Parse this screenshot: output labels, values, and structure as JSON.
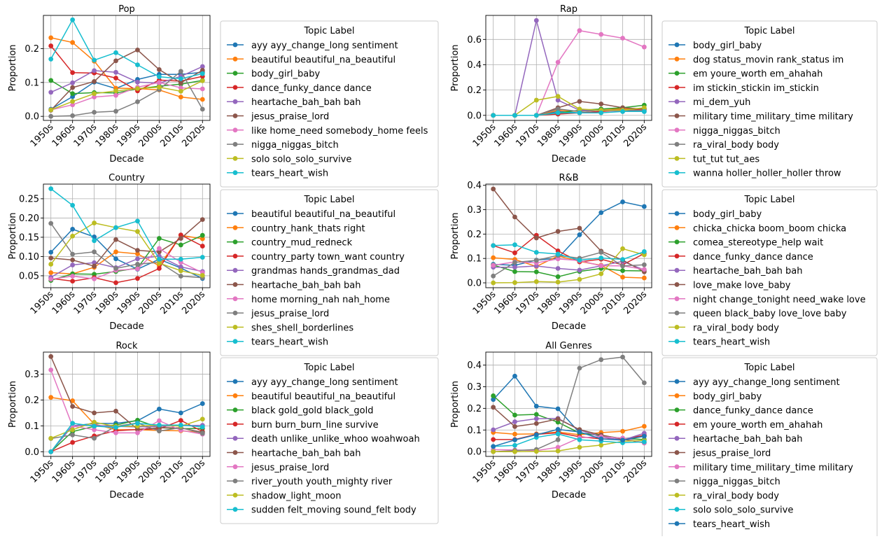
{
  "palette": [
    "#1f77b4",
    "#ff7f0e",
    "#2ca02c",
    "#d62728",
    "#9467bd",
    "#8c564b",
    "#e377c2",
    "#7f7f7f",
    "#bcbd22",
    "#17becf",
    "#1f77b4"
  ],
  "chart_data": [
    {
      "type": "line",
      "title": "Pop",
      "xlabel": "Decade",
      "ylabel": "Proportion",
      "legend_title": "Topic Label",
      "categories": [
        "1950s",
        "1960s",
        "1970s",
        "1980s",
        "1990s",
        "2000s",
        "2010s",
        "2020s"
      ],
      "ylim": [
        -0.012,
        0.298
      ],
      "yticks": [
        0.0,
        0.1,
        0.2
      ],
      "ytick_labels": [
        "0.0",
        "0.1",
        "0.2"
      ],
      "grid": true,
      "series": [
        {
          "name": "ayy ayy_change_long sentiment",
          "values": [
            0.021,
            0.058,
            0.101,
            0.082,
            0.109,
            0.124,
            0.124,
            0.13
          ]
        },
        {
          "name": "beautiful beautiful_na_beautiful",
          "values": [
            0.232,
            0.218,
            0.163,
            0.083,
            0.082,
            0.078,
            0.057,
            0.05
          ]
        },
        {
          "name": "body_girl_baby",
          "values": [
            0.106,
            0.067,
            0.07,
            0.069,
            0.081,
            0.089,
            0.095,
            0.106
          ]
        },
        {
          "name": "dance_funky_dance dance",
          "values": [
            0.208,
            0.129,
            0.128,
            0.113,
            0.075,
            0.107,
            0.104,
            0.118
          ]
        },
        {
          "name": "heartache_bah_bah bah",
          "values": [
            0.071,
            0.099,
            0.135,
            0.13,
            0.101,
            0.098,
            0.118,
            0.147
          ]
        },
        {
          "name": "jesus_praise_lord",
          "values": [
            0.018,
            0.085,
            0.103,
            0.164,
            0.196,
            0.138,
            0.099,
            0.136
          ]
        },
        {
          "name": "like home_need somebody_home feels",
          "values": [
            0.019,
            0.034,
            0.057,
            0.062,
            0.086,
            0.1,
            0.084,
            0.081
          ]
        },
        {
          "name": "nigga_niggas_bitch",
          "values": [
            0.0,
            0.002,
            0.012,
            0.015,
            0.043,
            0.079,
            0.133,
            0.021
          ]
        },
        {
          "name": "solo solo_solo_survive",
          "values": [
            0.019,
            0.044,
            0.067,
            0.075,
            0.082,
            0.086,
            0.074,
            0.105
          ]
        },
        {
          "name": "tears_heart_wish",
          "values": [
            0.169,
            0.285,
            0.166,
            0.188,
            0.152,
            0.117,
            0.111,
            0.126
          ]
        }
      ]
    },
    {
      "type": "line",
      "title": "Rap",
      "xlabel": "Decade",
      "ylabel": "Proportion",
      "legend_title": "Topic Label",
      "categories": [
        "1950s",
        "1960s",
        "1970s",
        "1980s",
        "1990s",
        "2000s",
        "2010s",
        "2020s"
      ],
      "ylim": [
        -0.04,
        0.79
      ],
      "yticks": [
        0.0,
        0.2,
        0.4,
        0.6
      ],
      "ytick_labels": [
        "0.0",
        "0.2",
        "0.4",
        "0.6"
      ],
      "grid": true,
      "series": [
        {
          "name": "body_girl_baby",
          "values": [
            0.0,
            0.0,
            0.0,
            0.03,
            0.02,
            0.03,
            0.05,
            0.03
          ]
        },
        {
          "name": "dog status_movin rank_status im",
          "values": [
            0.0,
            0.0,
            0.0,
            0.04,
            0.03,
            0.05,
            0.05,
            0.05
          ]
        },
        {
          "name": "em youre_worth em_ahahah",
          "values": [
            0.0,
            0.0,
            0.0,
            0.02,
            0.04,
            0.05,
            0.06,
            0.08
          ]
        },
        {
          "name": "im stickin_stickin im_stickin",
          "values": [
            0.0,
            0.0,
            0.0,
            0.01,
            0.02,
            0.03,
            0.04,
            0.05
          ]
        },
        {
          "name": "mi_dem_yuh",
          "values": [
            0.0,
            0.0,
            0.75,
            0.12,
            0.04,
            0.04,
            0.03,
            0.04
          ]
        },
        {
          "name": "military time_military_time military",
          "values": [
            0.0,
            0.0,
            0.0,
            0.06,
            0.11,
            0.09,
            0.06,
            0.05
          ]
        },
        {
          "name": "nigga_niggas_bitch",
          "values": [
            0.0,
            0.0,
            0.0,
            0.42,
            0.67,
            0.64,
            0.61,
            0.54
          ]
        },
        {
          "name": "ra_viral_body body",
          "values": [
            0.0,
            0.0,
            0.0,
            0.05,
            0.03,
            0.04,
            0.04,
            0.04
          ]
        },
        {
          "name": "tut_tut tut_aes",
          "values": [
            0.0,
            0.0,
            0.12,
            0.15,
            0.05,
            0.04,
            0.04,
            0.06
          ]
        },
        {
          "name": "wanna holler_holler_holler throw",
          "values": [
            0.0,
            0.0,
            0.0,
            0.02,
            0.02,
            0.02,
            0.03,
            0.03
          ]
        }
      ]
    },
    {
      "type": "line",
      "title": "Country",
      "xlabel": "Decade",
      "ylabel": "Proportion",
      "legend_title": "Topic Label",
      "categories": [
        "1950s",
        "1960s",
        "1970s",
        "1980s",
        "1990s",
        "2000s",
        "2010s",
        "2020s"
      ],
      "ylim": [
        0.019,
        0.288
      ],
      "yticks": [
        0.05,
        0.1,
        0.15,
        0.2,
        0.25
      ],
      "ytick_labels": [
        "0.05",
        "0.10",
        "0.15",
        "0.20",
        "0.25"
      ],
      "grid": true,
      "series": [
        {
          "name": "beautiful beautiful_na_beautiful",
          "values": [
            0.111,
            0.171,
            0.151,
            0.094,
            0.067,
            0.093,
            0.07,
            0.043
          ]
        },
        {
          "name": "country_hank_thats right",
          "values": [
            0.058,
            0.055,
            0.072,
            0.112,
            0.107,
            0.076,
            0.155,
            0.146
          ]
        },
        {
          "name": "country_mud_redneck",
          "values": [
            0.038,
            0.055,
            0.054,
            0.061,
            0.07,
            0.147,
            0.13,
            0.155
          ]
        },
        {
          "name": "country_party town_want country",
          "values": [
            0.043,
            0.036,
            0.045,
            0.032,
            0.043,
            0.069,
            0.156,
            0.127
          ]
        },
        {
          "name": "grandmas hands_grandmas_dad",
          "values": [
            0.046,
            0.078,
            0.084,
            0.071,
            0.094,
            0.101,
            0.073,
            0.061
          ]
        },
        {
          "name": "heartache_bah_bah bah",
          "values": [
            0.096,
            0.091,
            0.075,
            0.144,
            0.116,
            0.112,
            0.147,
            0.196
          ]
        },
        {
          "name": "home morning_nah nah_home",
          "values": [
            0.041,
            0.049,
            0.042,
            0.064,
            0.068,
            0.121,
            0.085,
            0.058
          ]
        },
        {
          "name": "jesus_praise_lord",
          "values": [
            0.186,
            0.106,
            0.112,
            0.069,
            0.08,
            0.085,
            0.049,
            0.045
          ]
        },
        {
          "name": "shes_shell_borderlines",
          "values": [
            0.08,
            0.153,
            0.187,
            0.175,
            0.165,
            0.083,
            0.063,
            0.051
          ]
        },
        {
          "name": "tears_heart_wish",
          "values": [
            0.276,
            0.233,
            0.141,
            0.175,
            0.192,
            0.093,
            0.093,
            0.098
          ]
        }
      ]
    },
    {
      "type": "line",
      "title": "R&B",
      "xlabel": "Decade",
      "ylabel": "Proportion",
      "legend_title": "Topic Label",
      "categories": [
        "1950s",
        "1960s",
        "1970s",
        "1980s",
        "1990s",
        "2000s",
        "2010s",
        "2020s"
      ],
      "ylim": [
        -0.02,
        0.405
      ],
      "yticks": [
        0.0,
        0.1,
        0.2,
        0.3,
        0.4
      ],
      "ytick_labels": [
        "0.0",
        "0.1",
        "0.2",
        "0.3",
        "0.4"
      ],
      "grid": true,
      "series": [
        {
          "name": "body_girl_baby",
          "values": [
            0.076,
            0.072,
            0.093,
            0.101,
            0.197,
            0.288,
            0.332,
            0.313
          ]
        },
        {
          "name": "chicka_chicka boom_boom chicka",
          "values": [
            0.103,
            0.096,
            0.067,
            0.11,
            0.088,
            0.072,
            0.023,
            0.02
          ]
        },
        {
          "name": "comea_stereotype_help wait",
          "values": [
            0.073,
            0.046,
            0.045,
            0.025,
            0.047,
            0.059,
            0.05,
            0.049
          ]
        },
        {
          "name": "dance_funky_dance dance",
          "values": [
            0.153,
            0.123,
            0.195,
            0.131,
            0.086,
            0.097,
            0.074,
            0.12
          ]
        },
        {
          "name": "heartache_bah_bah bah",
          "values": [
            0.064,
            0.064,
            0.069,
            0.059,
            0.052,
            0.07,
            0.088,
            0.053
          ]
        },
        {
          "name": "love_make love_baby",
          "values": [
            0.385,
            0.27,
            0.184,
            0.211,
            0.224,
            0.13,
            0.093,
            0.045
          ]
        },
        {
          "name": "night change_tonight need_wake love",
          "values": [
            0.072,
            0.086,
            0.082,
            0.098,
            0.091,
            0.07,
            0.07,
            0.055
          ]
        },
        {
          "name": "queen black_baby love_love baby",
          "values": [
            0.028,
            0.084,
            0.092,
            0.113,
            0.101,
            0.125,
            0.069,
            0.074
          ]
        },
        {
          "name": "ra_viral_body body",
          "values": [
            0.0,
            0.001,
            0.005,
            0.003,
            0.014,
            0.037,
            0.14,
            0.115
          ]
        },
        {
          "name": "tears_heart_wish",
          "values": [
            0.153,
            0.156,
            0.125,
            0.118,
            0.093,
            0.102,
            0.096,
            0.128
          ]
        }
      ]
    },
    {
      "type": "line",
      "title": "Rock",
      "xlabel": "Decade",
      "ylabel": "Proportion",
      "legend_title": "Topic Label",
      "categories": [
        "1950s",
        "1960s",
        "1970s",
        "1980s",
        "1990s",
        "2000s",
        "2010s",
        "2020s"
      ],
      "ylim": [
        -0.018,
        0.385
      ],
      "yticks": [
        0.0,
        0.1,
        0.2,
        0.3
      ],
      "ytick_labels": [
        "0.0",
        "0.1",
        "0.2",
        "0.3"
      ],
      "grid": true,
      "series": [
        {
          "name": "ayy ayy_change_long sentiment",
          "values": [
            0.0,
            0.1,
            0.109,
            0.11,
            0.12,
            0.165,
            0.15,
            0.186
          ]
        },
        {
          "name": "beautiful beautiful_na_beautiful",
          "values": [
            0.21,
            0.197,
            0.107,
            0.085,
            0.085,
            0.082,
            0.081,
            0.074
          ]
        },
        {
          "name": "black gold_gold black_gold",
          "values": [
            0.0,
            0.078,
            0.098,
            0.103,
            0.122,
            0.093,
            0.089,
            0.09
          ]
        },
        {
          "name": "burn burn_burn_line survive",
          "values": [
            0.0,
            0.036,
            0.061,
            0.081,
            0.086,
            0.088,
            0.121,
            0.078
          ]
        },
        {
          "name": "death unlike_unlike_whoo woahwoah",
          "values": [
            0.0,
            0.101,
            0.102,
            0.098,
            0.096,
            0.098,
            0.101,
            0.102
          ]
        },
        {
          "name": "heartache_bah_bah bah",
          "values": [
            0.368,
            0.175,
            0.15,
            0.157,
            0.087,
            0.093,
            0.092,
            0.075
          ]
        },
        {
          "name": "jesus_praise_lord",
          "values": [
            0.316,
            0.099,
            0.085,
            0.073,
            0.073,
            0.12,
            0.083,
            0.068
          ]
        },
        {
          "name": "river_youth youth_mighty river",
          "values": [
            0.051,
            0.065,
            0.052,
            0.098,
            0.111,
            0.08,
            0.093,
            0.071
          ]
        },
        {
          "name": "shadow_light_moon",
          "values": [
            0.052,
            0.085,
            0.114,
            0.098,
            0.099,
            0.103,
            0.099,
            0.126
          ]
        },
        {
          "name": "sudden felt_moving sound_felt body",
          "values": [
            0.0,
            0.11,
            0.099,
            0.094,
            0.11,
            0.103,
            0.103,
            0.096
          ]
        }
      ]
    },
    {
      "type": "line",
      "title": "All Genres",
      "xlabel": "Decade",
      "ylabel": "Proportion",
      "legend_title": "Topic Label",
      "categories": [
        "1950s",
        "1960s",
        "1970s",
        "1980s",
        "1990s",
        "2000s",
        "2010s",
        "2020s"
      ],
      "ylim": [
        -0.022,
        0.46
      ],
      "yticks": [
        0.0,
        0.1,
        0.2,
        0.3,
        0.4
      ],
      "ytick_labels": [
        "0.0",
        "0.1",
        "0.2",
        "0.3",
        "0.4"
      ],
      "grid": true,
      "series": [
        {
          "name": "ayy ayy_change_long sentiment",
          "values": [
            0.241,
            0.349,
            0.21,
            0.198,
            0.087,
            0.074,
            0.058,
            0.074
          ]
        },
        {
          "name": "body_girl_baby",
          "values": [
            0.089,
            0.081,
            0.082,
            0.091,
            0.078,
            0.088,
            0.094,
            0.117
          ]
        },
        {
          "name": "dance_funky_dance dance",
          "values": [
            0.258,
            0.169,
            0.172,
            0.136,
            0.086,
            0.074,
            0.061,
            0.056
          ]
        },
        {
          "name": "em youre_worth em_ahahah",
          "values": [
            0.056,
            0.056,
            0.08,
            0.087,
            0.069,
            0.059,
            0.056,
            0.076
          ]
        },
        {
          "name": "heartache_bah_bah bah",
          "values": [
            0.101,
            0.138,
            0.152,
            0.154,
            0.1,
            0.068,
            0.053,
            0.085
          ]
        },
        {
          "name": "jesus_praise_lord",
          "values": [
            0.205,
            0.116,
            0.13,
            0.151,
            0.102,
            0.077,
            0.058,
            0.04
          ]
        },
        {
          "name": "military time_military_time military",
          "values": [
            0.009,
            0.008,
            0.005,
            0.02,
            0.064,
            0.069,
            0.063,
            0.04
          ]
        },
        {
          "name": "nigga_niggas_bitch",
          "values": [
            0.0,
            0.005,
            0.01,
            0.055,
            0.386,
            0.425,
            0.437,
            0.318
          ]
        },
        {
          "name": "ra_viral_body body",
          "values": [
            0.0,
            0.0,
            0.001,
            0.003,
            0.02,
            0.03,
            0.048,
            0.052
          ]
        },
        {
          "name": "solo solo_solo_survive",
          "values": [
            0.024,
            0.029,
            0.066,
            0.082,
            0.055,
            0.049,
            0.041,
            0.045
          ]
        },
        {
          "name": "tears_heart_wish",
          "values": [
            0.024,
            0.054,
            0.078,
            0.103,
            0.091,
            0.059,
            0.053,
            0.071
          ]
        }
      ]
    }
  ]
}
